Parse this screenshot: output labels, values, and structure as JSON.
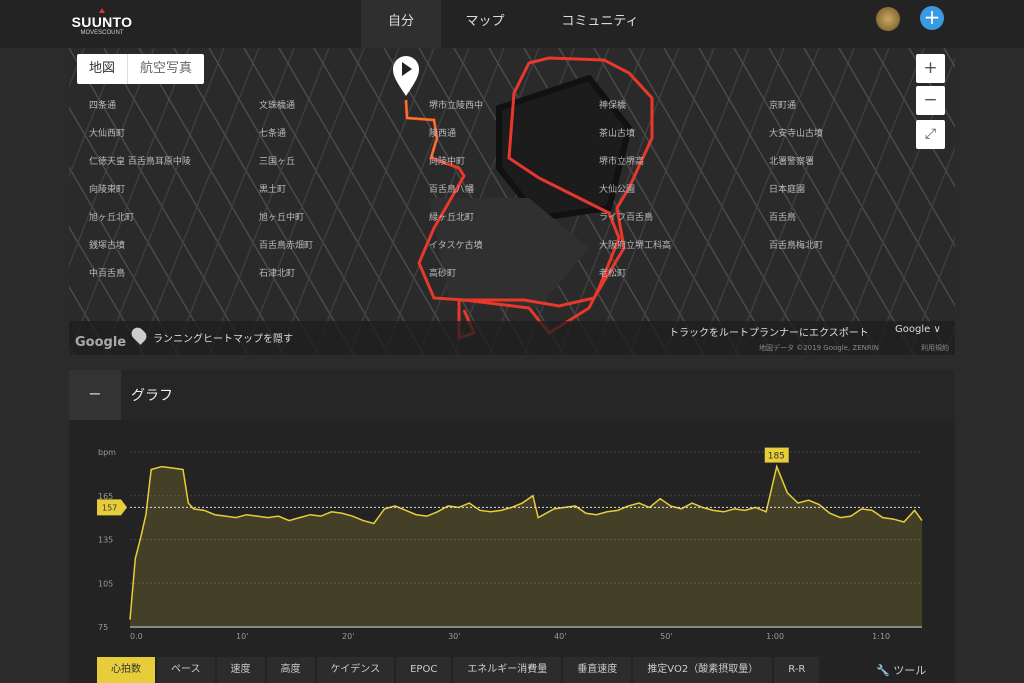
{
  "header": {
    "brand": "SUUNTO",
    "sub_brand": "MOVESCOUNT",
    "nav": [
      {
        "label": "自分",
        "active": true
      },
      {
        "label": "マップ"
      },
      {
        "label": "コミュニティ"
      }
    ],
    "add_icon": "plus-icon"
  },
  "map": {
    "types": [
      "地図",
      "航空写真"
    ],
    "zoom_in": "+",
    "zoom_out": "−",
    "fullscreen": "⤢",
    "heatmap_toggle": "ランニングヒートマップを隠す",
    "export": "トラックをルートプランナーにエクスポート",
    "google_menu": "Google ∨",
    "attribution": "地図データ ©2019 Google, ZENRIN",
    "terms": "利用規約",
    "logo": "Google",
    "labels": [
      "四条通",
      "文珠橋通",
      "堺市立陵西中",
      "神保橋",
      "京町通",
      "大仙西町",
      "七条通",
      "陵西通",
      "茶山古墳",
      "大安寺山古墳",
      "仁徳天皇 百舌鳥耳原中陵",
      "三国ヶ丘",
      "向陵中町",
      "堺市立堺高",
      "北署警察署",
      "向陵東町",
      "黒土町",
      "百舌鳥八幡",
      "大仙公園",
      "日本庭園",
      "旭ヶ丘北町",
      "旭ヶ丘中町",
      "緑ヶ丘北町",
      "ライフ百舌鳥",
      "百舌鳥",
      "銭塚古墳",
      "百舌鳥赤畑町",
      "イタスケ古墳",
      "大阪府立堺工科高",
      "百舌鳥梅北町",
      "中百舌鳥",
      "石津北町",
      "高砂町",
      "老松町"
    ],
    "route_color": "#e8382c"
  },
  "graph": {
    "title": "グラフ",
    "collapse": "−",
    "tabs": [
      "心拍数",
      "ペース",
      "速度",
      "高度",
      "ケイデンス",
      "EPOC",
      "エネルギー消費量",
      "垂直速度",
      "推定VO2（酸素摂取量）",
      "R-R"
    ],
    "active_tab": "心拍数",
    "tools": "ツール",
    "tools_icon": "wrench-icon"
  },
  "chart_data": {
    "type": "area",
    "ylabel": "bpm",
    "yticks": [
      75,
      105,
      135,
      165
    ],
    "ylim": [
      75,
      195
    ],
    "xticks": [
      "0.0",
      "10'",
      "20'",
      "30'",
      "40'",
      "50'",
      "1:00",
      "1:10"
    ],
    "xtick_values": [
      0,
      10,
      20,
      30,
      40,
      50,
      60,
      70
    ],
    "xlim": [
      0,
      74.7
    ],
    "color": "#e8cd3a",
    "average": 157,
    "max": 185,
    "max_at": 61,
    "x": [
      0,
      0.5,
      1,
      1.5,
      2,
      3,
      4,
      5,
      5.5,
      6,
      7,
      8,
      9,
      10,
      11,
      12,
      13,
      14,
      15,
      16,
      17,
      18,
      19,
      20,
      21,
      22,
      23,
      24,
      25,
      26,
      27,
      28,
      29,
      30,
      31,
      32,
      33,
      34,
      35,
      36,
      37,
      38,
      38.5,
      39,
      40,
      41,
      42,
      43,
      44,
      45,
      46,
      47,
      48,
      49,
      50,
      51,
      52,
      53,
      54,
      55,
      56,
      57,
      58,
      59,
      60,
      61,
      62,
      63,
      64,
      65,
      66,
      67,
      68,
      69,
      70,
      71,
      72,
      73,
      74,
      74.7
    ],
    "y": [
      80,
      122,
      136,
      152,
      183,
      185,
      184,
      183,
      160,
      156,
      155,
      152,
      151,
      150,
      152,
      151,
      150,
      151,
      148,
      150,
      152,
      151,
      154,
      153,
      151,
      148,
      146,
      156,
      158,
      155,
      152,
      151,
      154,
      158,
      157,
      160,
      155,
      154,
      155,
      157,
      160,
      165,
      150,
      152,
      156,
      157,
      158,
      153,
      152,
      154,
      155,
      158,
      160,
      157,
      163,
      158,
      156,
      160,
      157,
      155,
      154,
      156,
      155,
      157,
      154,
      185,
      167,
      160,
      162,
      159,
      153,
      150,
      151,
      156,
      155,
      150,
      149,
      147,
      155,
      148
    ]
  }
}
